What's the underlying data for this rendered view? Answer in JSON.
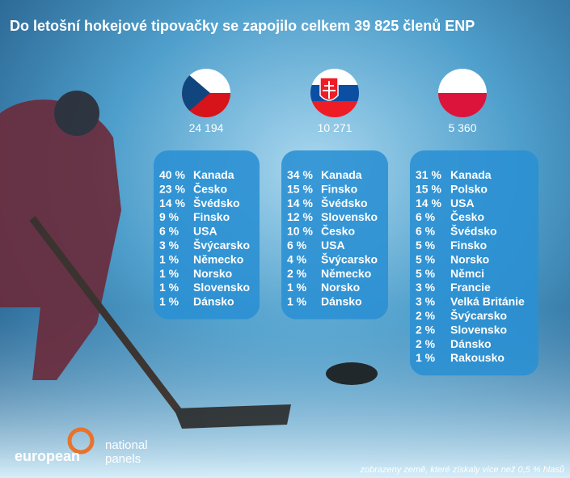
{
  "header": {
    "title": "Do letošní hokejové tipovačky se zapojilo celkem 39 825 členů ENP"
  },
  "columns": [
    {
      "count": "24 194",
      "rows": [
        [
          "40 %",
          "Kanada"
        ],
        [
          "23 %",
          "Česko"
        ],
        [
          "14 %",
          "Švédsko"
        ],
        [
          "9 %",
          "Finsko"
        ],
        [
          "6 %",
          "USA"
        ],
        [
          "3 %",
          "Švýcarsko"
        ],
        [
          "1 %",
          "Německo"
        ],
        [
          "1 %",
          "Norsko"
        ],
        [
          "1 %",
          "Slovensko"
        ],
        [
          "1 %",
          "Dánsko"
        ]
      ]
    },
    {
      "count": "10 271",
      "rows": [
        [
          "34 %",
          "Kanada"
        ],
        [
          "15 %",
          "Finsko"
        ],
        [
          "14 %",
          "Švédsko"
        ],
        [
          "12 %",
          "Slovensko"
        ],
        [
          "10 %",
          "Česko"
        ],
        [
          "6 %",
          "USA"
        ],
        [
          "4 %",
          "Švýcarsko"
        ],
        [
          "2 %",
          "Německo"
        ],
        [
          "1 %",
          "Norsko"
        ],
        [
          "1 %",
          "Dánsko"
        ]
      ]
    },
    {
      "count": "5 360",
      "rows": [
        [
          "31 %",
          "Kanada"
        ],
        [
          "15 %",
          "Polsko"
        ],
        [
          "14 %",
          "USA"
        ],
        [
          "6 %",
          "Česko"
        ],
        [
          "6 %",
          "Švédsko"
        ],
        [
          "5 %",
          "Finsko"
        ],
        [
          "5 %",
          "Norsko"
        ],
        [
          "5 %",
          "Němci"
        ],
        [
          "3 %",
          "Francie"
        ],
        [
          "3 %",
          "Velká Británie"
        ],
        [
          "2 %",
          "Švýcarsko"
        ],
        [
          "2 %",
          "Slovensko"
        ],
        [
          "2 %",
          "Dánsko"
        ],
        [
          "1 %",
          "Rakousko"
        ]
      ]
    }
  ],
  "logo": {
    "left": "european",
    "right_top": "national",
    "right_bottom": "panels"
  },
  "footnote": "zobrazeny země, které získaly více  než 0,5 % hlasů"
}
